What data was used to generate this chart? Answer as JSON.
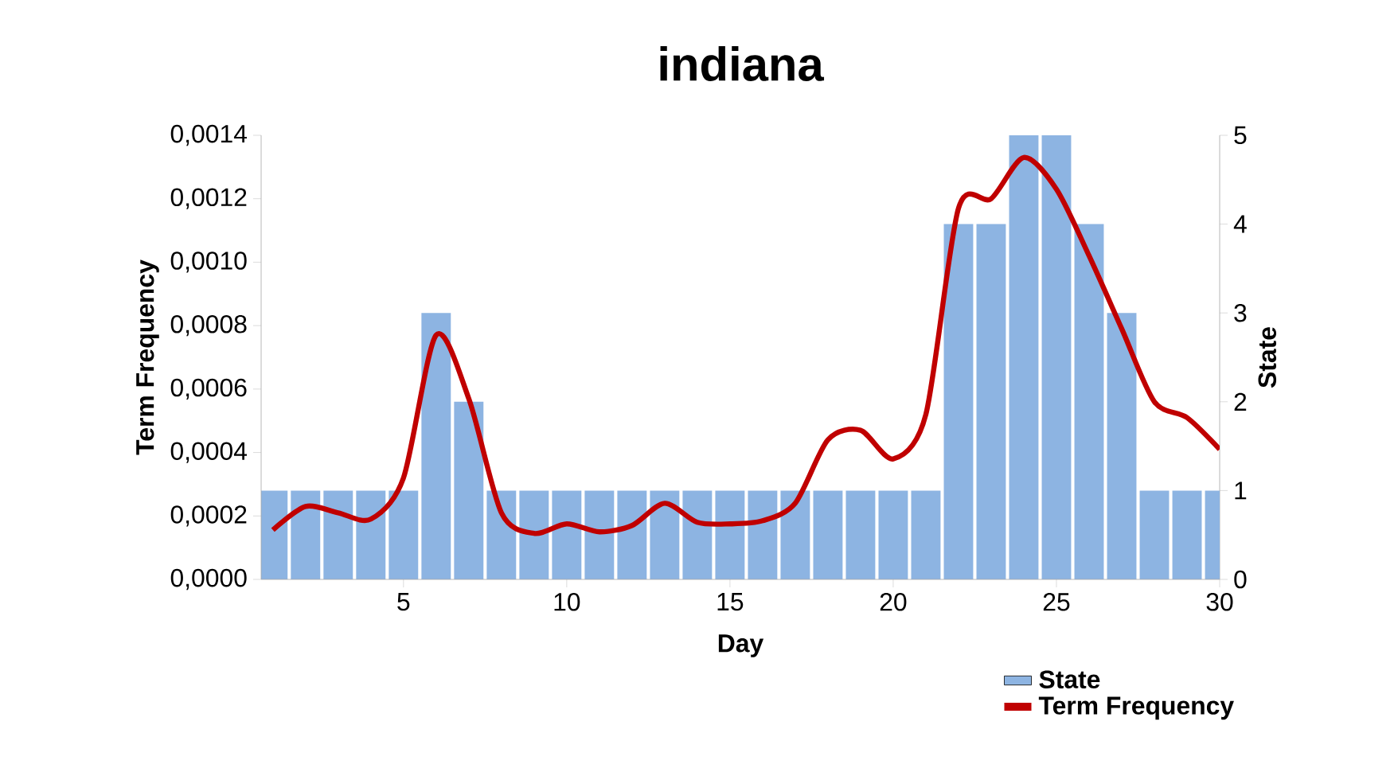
{
  "chart_data": {
    "type": "line",
    "title": "indiana",
    "xlabel": "Day",
    "ylabel": "Term Frequency",
    "y2label": "State",
    "x": [
      1,
      2,
      3,
      4,
      5,
      6,
      7,
      8,
      9,
      10,
      11,
      12,
      13,
      14,
      15,
      16,
      17,
      18,
      19,
      20,
      21,
      22,
      23,
      24,
      25,
      26,
      27,
      28,
      29,
      30
    ],
    "series": [
      {
        "name": "State",
        "type": "bar",
        "axis": "y2",
        "color": "#8db4e2",
        "values": [
          1,
          1,
          1,
          1,
          1,
          3,
          2,
          1,
          1,
          1,
          1,
          1,
          1,
          1,
          1,
          1,
          1,
          1,
          1,
          1,
          1,
          4,
          4,
          5,
          5,
          4,
          3,
          1,
          1,
          1
        ]
      },
      {
        "name": "Term Frequency",
        "color": "#c00000",
        "values": [
          0.000156,
          0.00023,
          0.00021,
          0.00019,
          0.00032,
          0.00077,
          0.00057,
          0.00021,
          0.000145,
          0.000175,
          0.00015,
          0.00017,
          0.00024,
          0.00018,
          0.000175,
          0.000185,
          0.00024,
          0.00044,
          0.00047,
          0.00038,
          0.00052,
          0.00117,
          0.0012,
          0.00133,
          0.00123,
          0.00102,
          0.00079,
          0.00056,
          0.00051,
          0.00041
        ]
      }
    ],
    "xlim": [
      0.64,
      30
    ],
    "xticks": [
      5,
      10,
      15,
      20,
      25,
      30
    ],
    "ylim": [
      0,
      0.0014
    ],
    "yticks": [
      {
        "value": 0,
        "label": "0,0000"
      },
      {
        "value": 0.0002,
        "label": "0,0002"
      },
      {
        "value": 0.0004,
        "label": "0,0004"
      },
      {
        "value": 0.0006,
        "label": "0,0006"
      },
      {
        "value": 0.0008,
        "label": "0,0008"
      },
      {
        "value": 0.001,
        "label": "0,0010"
      },
      {
        "value": 0.0012,
        "label": "0,0012"
      },
      {
        "value": 0.0014,
        "label": "0,0014"
      }
    ],
    "y2lim": [
      0,
      5
    ],
    "y2ticks": [
      0,
      1,
      2,
      3,
      4,
      5
    ],
    "legend": "bottom right"
  }
}
